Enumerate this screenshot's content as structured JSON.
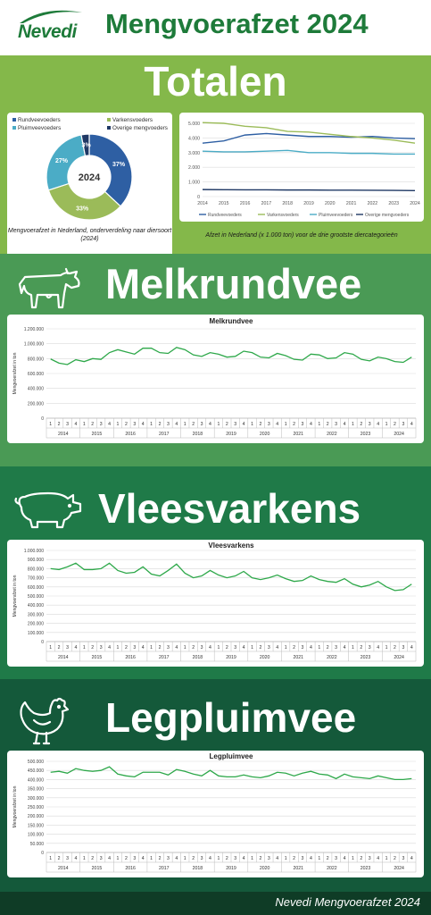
{
  "header": {
    "logo": "Nevedi",
    "title": "Mengvoerafzet 2024"
  },
  "totalen": {
    "title": "Totalen",
    "donut_caption": "Mengvoerafzet in Nederland, onderverdeling naar diersoort (2024)",
    "line_caption": "Afzet in Nederland (x 1.000 ton) voor de drie grootste diercategorieën"
  },
  "melk": {
    "title": "Melkrundvee"
  },
  "varkens": {
    "title": "Vleesvarkens"
  },
  "pluim": {
    "title": "Legpluimvee"
  },
  "footer": {
    "text": "Nevedi Mengvoerafzet 2024"
  },
  "colors": {
    "rund": "#2e5fa3",
    "varkens": "#9bbb59",
    "pluim": "#4bacc6",
    "overig": "#1f3864",
    "line": "#2ea84a"
  },
  "chart_data": [
    {
      "type": "pie",
      "variant": "donut",
      "center_label": "2024",
      "categories": [
        "Rundveevoeders",
        "Varkensvoeders",
        "Pluimveevoeders",
        "Overige mengvoeders"
      ],
      "values": [
        37,
        33,
        27,
        3
      ],
      "value_labels": [
        "37%",
        "33%",
        "27%",
        "3%"
      ],
      "legend": "top"
    },
    {
      "type": "line",
      "x": [
        "2014",
        "2015",
        "2016",
        "2017",
        "2018",
        "2019",
        "2020",
        "2021",
        "2022",
        "2023",
        "2024"
      ],
      "ylim": [
        0,
        5000
      ],
      "yticks": [
        "0",
        "1.000",
        "2.000",
        "3.000",
        "4.000",
        "5.000"
      ],
      "series": [
        {
          "name": "Rundveevoeders",
          "values": [
            3650,
            3800,
            4200,
            4300,
            4200,
            4100,
            4100,
            4050,
            4100,
            4000,
            3950
          ]
        },
        {
          "name": "Varkensvoeders",
          "values": [
            5050,
            5000,
            4800,
            4700,
            4450,
            4400,
            4250,
            4100,
            4000,
            3850,
            3650
          ]
        },
        {
          "name": "Pluimveevoeders",
          "values": [
            3100,
            3050,
            3050,
            3100,
            3150,
            3000,
            3000,
            2950,
            2950,
            2900,
            2900
          ]
        },
        {
          "name": "Overige mengvoeders",
          "values": [
            480,
            470,
            460,
            460,
            450,
            450,
            440,
            440,
            430,
            420,
            410
          ]
        }
      ],
      "legend": "bottom",
      "grid": true
    },
    {
      "type": "line",
      "title": "Melkrundvee",
      "ylabel": "Mengvoerafzet in ton",
      "ylim": [
        0,
        1200000
      ],
      "yticks": [
        "0",
        "200.000",
        "400.000",
        "600.000",
        "800.000",
        "1.000.000",
        "1.200.000"
      ],
      "years": [
        "2014",
        "2015",
        "2016",
        "2017",
        "2018",
        "2019",
        "2020",
        "2021",
        "2022",
        "2023",
        "2024"
      ],
      "quarters": [
        "1",
        "2",
        "3",
        "4"
      ],
      "values": [
        795000,
        740000,
        720000,
        785000,
        760000,
        800000,
        790000,
        880000,
        920000,
        890000,
        860000,
        940000,
        940000,
        880000,
        870000,
        950000,
        920000,
        850000,
        830000,
        880000,
        860000,
        820000,
        830000,
        900000,
        880000,
        820000,
        810000,
        870000,
        840000,
        790000,
        780000,
        860000,
        850000,
        800000,
        810000,
        880000,
        860000,
        790000,
        770000,
        820000,
        800000,
        760000,
        750000,
        820000
      ],
      "grid": true
    },
    {
      "type": "line",
      "title": "Vleesvarkens",
      "ylabel": "Mengvoerafzet in ton",
      "ylim": [
        0,
        1000000
      ],
      "yticks": [
        "0",
        "100.000",
        "200.000",
        "300.000",
        "400.000",
        "500.000",
        "600.000",
        "700.000",
        "800.000",
        "900.000",
        "1.000.000"
      ],
      "years": [
        "2014",
        "2015",
        "2016",
        "2017",
        "2018",
        "2019",
        "2020",
        "2021",
        "2022",
        "2023",
        "2024"
      ],
      "quarters": [
        "1",
        "2",
        "3",
        "4"
      ],
      "values": [
        800000,
        790000,
        820000,
        860000,
        790000,
        790000,
        800000,
        860000,
        780000,
        750000,
        760000,
        820000,
        740000,
        720000,
        780000,
        850000,
        750000,
        700000,
        720000,
        780000,
        730000,
        700000,
        720000,
        770000,
        700000,
        680000,
        700000,
        730000,
        690000,
        660000,
        670000,
        720000,
        680000,
        660000,
        650000,
        690000,
        630000,
        600000,
        620000,
        660000,
        600000,
        560000,
        570000,
        630000
      ],
      "grid": true
    },
    {
      "type": "line",
      "title": "Legpluimvee",
      "ylabel": "Mengvoerafzet in ton",
      "ylim": [
        0,
        500000
      ],
      "yticks": [
        "0",
        "50.000",
        "100.000",
        "150.000",
        "200.000",
        "250.000",
        "300.000",
        "350.000",
        "400.000",
        "450.000",
        "500.000"
      ],
      "years": [
        "2014",
        "2015",
        "2016",
        "2017",
        "2018",
        "2019",
        "2020",
        "2021",
        "2022",
        "2023",
        "2024"
      ],
      "quarters": [
        "1",
        "2",
        "3",
        "4"
      ],
      "values": [
        440000,
        445000,
        435000,
        460000,
        450000,
        445000,
        450000,
        470000,
        430000,
        420000,
        415000,
        440000,
        440000,
        440000,
        425000,
        455000,
        445000,
        430000,
        420000,
        450000,
        420000,
        415000,
        415000,
        425000,
        415000,
        410000,
        420000,
        440000,
        435000,
        420000,
        435000,
        445000,
        430000,
        425000,
        405000,
        430000,
        415000,
        410000,
        405000,
        420000,
        410000,
        400000,
        400000,
        405000
      ],
      "grid": true
    }
  ]
}
